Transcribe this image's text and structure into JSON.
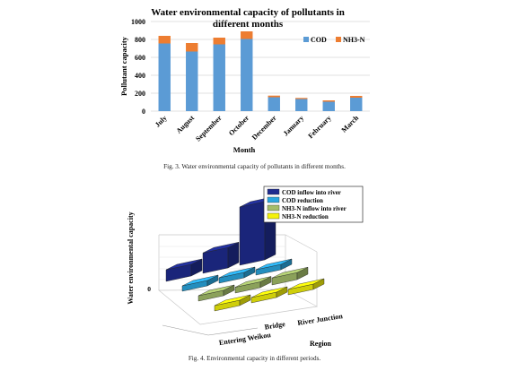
{
  "figure3": {
    "caption": "Fig. 3.  Water environmental capacity of pollutants in different months.",
    "chart_data": {
      "type": "bar",
      "stacked": true,
      "title": "Water environmental capacity of pollutants in different months",
      "xlabel": "Month",
      "ylabel": "Pollutant capacity",
      "ylim": [
        0,
        1000
      ],
      "yticks": [
        0,
        200,
        400,
        600,
        800,
        1000
      ],
      "grid": true,
      "legend_position": "top-right",
      "categories": [
        "July",
        "August",
        "September",
        "October",
        "December",
        "January",
        "February",
        "March"
      ],
      "series": [
        {
          "name": "COD",
          "color": "#5b9bd5",
          "values": [
            755,
            665,
            745,
            805,
            155,
            135,
            105,
            150
          ]
        },
        {
          "name": "NH3-N",
          "color": "#ed7d31",
          "values": [
            85,
            95,
            75,
            85,
            18,
            12,
            15,
            20
          ]
        }
      ]
    }
  },
  "figure4": {
    "caption": "Fig. 4.  Environmental capacity in different periods.",
    "chart_data": {
      "type": "bar3d",
      "zlabel": "Water environmental capacity",
      "ztick_labels": [
        "0"
      ],
      "xlabel": "Region",
      "regions": [
        "Entering Weikou",
        "Bridge",
        "River Junction"
      ],
      "legend_position": "top-right",
      "series": [
        {
          "name": "COD inflow into river",
          "color": "#1f2c8f",
          "values": [
            2.0,
            3.5,
            10.0
          ]
        },
        {
          "name": "COD reduction",
          "color": "#2aa7e0",
          "values": [
            0.5,
            0.6,
            0.6
          ]
        },
        {
          "name": "NH3-N inflow into river",
          "color": "#a3bd6a",
          "values": [
            0.8,
            1.0,
            1.2
          ]
        },
        {
          "name": "NH3-N reduction",
          "color": "#f4f20c",
          "values": [
            0.4,
            0.4,
            0.4
          ]
        }
      ]
    }
  }
}
